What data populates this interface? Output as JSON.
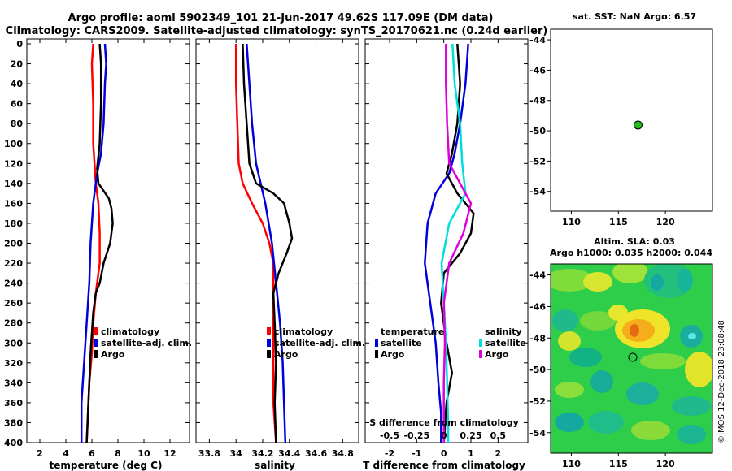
{
  "header": {
    "line1": "Argo profile: aoml 5902349_101 21-Jun-2017 49.62S 117.09E (DM data)",
    "line2": "Climatology: CARS2009. Satellite-adjusted climatology: synTS_20170621.nc (0.24d earlier)"
  },
  "sst_panel": {
    "title": "sat. SST: NaN Argo: 6.57",
    "lat_ticks": [
      "-44",
      "-46",
      "-48",
      "-50",
      "-52",
      "-54"
    ],
    "lon_ticks": [
      "110",
      "115",
      "120"
    ],
    "lat_values": [
      -44,
      -46,
      -48,
      -50,
      -52,
      -54
    ],
    "lon_values": [
      110,
      115,
      120
    ],
    "argo_point": {
      "lon": 117.09,
      "lat": -49.62
    },
    "marker_color": "#22bb22"
  },
  "ssh_panel": {
    "title1": "Altim. SLA: 0.03",
    "title2": "Argo h1000: 0.035 h2000: 0.044",
    "lat_ticks": [
      "-44",
      "-46",
      "-48",
      "-50",
      "-52",
      "-54"
    ],
    "lon_ticks": [
      "110",
      "115",
      "120"
    ],
    "credit": "©IMOS 12-Dec-2018 23:08:48"
  },
  "chart_data": [
    {
      "type": "line",
      "name": "temperature",
      "xlabel": "temperature (deg C)",
      "xlim": [
        1,
        13.5
      ],
      "xticks": [
        2,
        4,
        6,
        8,
        10,
        12
      ],
      "xtick_labels": [
        "2",
        "4",
        "6",
        "8",
        "10",
        "12"
      ],
      "ylim": [
        400,
        0
      ],
      "yticks": [
        0,
        20,
        40,
        60,
        80,
        100,
        120,
        140,
        160,
        180,
        200,
        220,
        240,
        260,
        280,
        300,
        320,
        340,
        360,
        380,
        400
      ],
      "ytick_labels": [
        "0",
        "20",
        "40",
        "60",
        "80",
        "100",
        "120",
        "140",
        "160",
        "180",
        "200",
        "220",
        "240",
        "260",
        "280",
        "300",
        "320",
        "340",
        "360",
        "380",
        "400"
      ],
      "legend": [
        "climatology",
        "satellite-adj. clim.",
        "Argo"
      ],
      "series": [
        {
          "name": "climatology",
          "color": "#ff0000",
          "y": [
            0,
            20,
            60,
            100,
            140,
            160,
            190,
            220,
            250,
            280,
            310,
            340,
            370,
            400
          ],
          "x": [
            6.1,
            6.0,
            6.1,
            6.1,
            6.3,
            6.5,
            6.6,
            6.6,
            6.3,
            6.1,
            6.0,
            5.8,
            5.7,
            5.6
          ]
        },
        {
          "name": "satellite-adj. clim.",
          "color": "#0000dd",
          "y": [
            0,
            20,
            40,
            80,
            110,
            130,
            160,
            200,
            240,
            280,
            320,
            360,
            400
          ],
          "x": [
            7.0,
            7.1,
            7.0,
            6.9,
            6.7,
            6.4,
            6.1,
            5.9,
            5.8,
            5.6,
            5.4,
            5.2,
            5.2
          ]
        },
        {
          "name": "Argo",
          "color": "#000000",
          "y": [
            0,
            20,
            60,
            100,
            125,
            140,
            155,
            165,
            180,
            200,
            220,
            240,
            250,
            270,
            290,
            310,
            340,
            370,
            400
          ],
          "x": [
            6.6,
            6.7,
            6.7,
            6.6,
            6.4,
            6.5,
            7.3,
            7.5,
            7.6,
            7.4,
            6.9,
            6.6,
            6.3,
            6.1,
            6.0,
            5.9,
            5.8,
            5.7,
            5.6
          ]
        }
      ]
    },
    {
      "type": "line",
      "name": "salinity",
      "xlabel": "salinity",
      "xlim": [
        33.7,
        34.92
      ],
      "xticks": [
        33.8,
        34,
        34.2,
        34.4,
        34.6,
        34.8
      ],
      "xtick_labels": [
        "33.8",
        "34",
        "34.2",
        "34.4",
        "34.6",
        "34.8"
      ],
      "ylim": [
        400,
        0
      ],
      "legend": [
        "climatology",
        "satellite-adj. clim.",
        "Argo"
      ],
      "series": [
        {
          "name": "climatology",
          "color": "#ff0000",
          "y": [
            0,
            40,
            80,
            120,
            140,
            160,
            180,
            200,
            220,
            240,
            280,
            320,
            360,
            400
          ],
          "x": [
            34.0,
            34.0,
            34.01,
            34.02,
            34.05,
            34.12,
            34.2,
            34.25,
            34.28,
            34.28,
            34.28,
            34.28,
            34.28,
            34.3
          ]
        },
        {
          "name": "satellite-adj. clim.",
          "color": "#0000dd",
          "y": [
            0,
            40,
            80,
            120,
            160,
            200,
            240,
            280,
            320,
            360,
            400
          ],
          "x": [
            34.08,
            34.1,
            34.12,
            34.15,
            34.22,
            34.27,
            34.3,
            34.33,
            34.35,
            34.36,
            34.37
          ]
        },
        {
          "name": "Argo",
          "color": "#000000",
          "y": [
            0,
            40,
            80,
            120,
            140,
            150,
            160,
            180,
            195,
            210,
            230,
            250,
            280,
            320,
            360,
            400
          ],
          "x": [
            34.05,
            34.06,
            34.08,
            34.1,
            34.15,
            34.28,
            34.36,
            34.4,
            34.42,
            34.38,
            34.32,
            34.28,
            34.29,
            34.3,
            34.29,
            34.3
          ]
        }
      ]
    },
    {
      "type": "line",
      "name": "difference",
      "xlabel": "T difference from climatology",
      "xlim": [
        -2.9,
        3.1
      ],
      "xticks": [
        -2,
        -1,
        0,
        1,
        2
      ],
      "xtick_labels": [
        "-2",
        "-1",
        "0",
        "1",
        "2"
      ],
      "top_scale_label": "S difference from climatology",
      "top_scale_ticks": [
        "-0.5",
        "-0.25",
        "0",
        "0.25",
        "0.5"
      ],
      "ylim": [
        400,
        0
      ],
      "legend_left_title": "temperature",
      "legend_right_title": "salinity",
      "legend": [
        "satellite",
        "Argo",
        "satellite",
        "Argo"
      ],
      "series": [
        {
          "name": "T satellite",
          "color": "#0000dd",
          "y": [
            0,
            40,
            80,
            110,
            130,
            150,
            180,
            220,
            260,
            300,
            340,
            370,
            400
          ],
          "x": [
            0.9,
            0.8,
            0.6,
            0.4,
            0.2,
            -0.3,
            -0.6,
            -0.7,
            -0.5,
            -0.3,
            -0.2,
            -0.1,
            -0.1
          ]
        },
        {
          "name": "T Argo",
          "color": "#000000",
          "y": [
            0,
            40,
            80,
            110,
            130,
            150,
            170,
            190,
            210,
            230,
            260,
            300,
            330,
            360,
            400
          ],
          "x": [
            0.5,
            0.6,
            0.5,
            0.3,
            0.1,
            0.5,
            1.1,
            1.0,
            0.6,
            0.0,
            -0.1,
            0.1,
            0.3,
            0.1,
            0.0
          ]
        },
        {
          "name": "S satellite",
          "color": "#00dddd",
          "y": [
            0,
            40,
            80,
            120,
            150,
            180,
            220,
            260,
            300,
            340,
            380,
            400
          ],
          "x": [
            0.08,
            0.1,
            0.15,
            0.17,
            0.2,
            0.05,
            -0.02,
            0.0,
            0.02,
            0.03,
            0.04,
            0.04
          ]
        },
        {
          "name": "S Argo",
          "color": "#dd00dd",
          "y": [
            0,
            40,
            80,
            120,
            140,
            160,
            190,
            220,
            260,
            300,
            340,
            380,
            400
          ],
          "x": [
            0.02,
            0.02,
            0.03,
            0.05,
            0.15,
            0.25,
            0.18,
            0.05,
            0.0,
            0.01,
            0.0,
            0.0,
            0.0
          ]
        }
      ]
    }
  ]
}
